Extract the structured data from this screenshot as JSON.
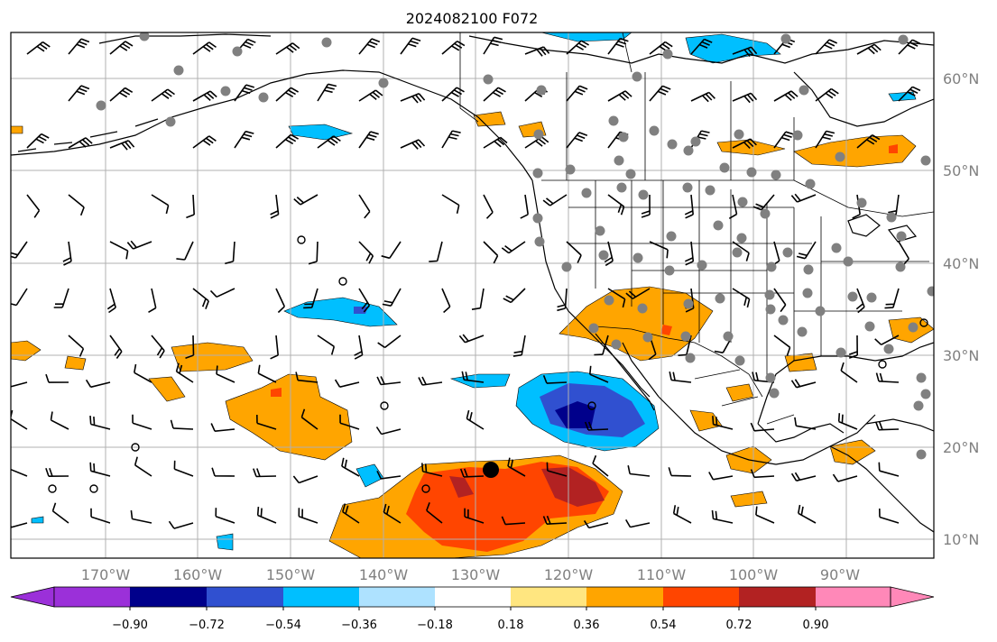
{
  "title": "2024082100 F072",
  "lon_labels": [
    "170°W",
    "160°W",
    "150°W",
    "140°W",
    "130°W",
    "120°W",
    "110°W",
    "100°W",
    "90°W"
  ],
  "lat_labels": [
    "60°N",
    "50°N",
    "40°N",
    "30°N",
    "20°N",
    "10°N"
  ],
  "colorbar": {
    "ticks": [
      "−0.90",
      "−0.72",
      "−0.54",
      "−0.36",
      "−0.18",
      "0.18",
      "0.36",
      "0.54",
      "0.72",
      "0.90"
    ],
    "colors": [
      "#9b30d9",
      "#00008b",
      "#3050d0",
      "#00bfff",
      "#aee2ff",
      "#ffffff",
      "#ffe680",
      "#ffa500",
      "#ff4500",
      "#b22222",
      "#ff88b8"
    ]
  },
  "palette": {
    "neg_strong": "#2040c0",
    "neg_mid": "#00bfff",
    "neg_light": "#aee2ff",
    "pos_light": "#ffa500",
    "pos_mid": "#ff4500",
    "pos_strong": "#b22222",
    "station_dot": "#808080"
  }
}
